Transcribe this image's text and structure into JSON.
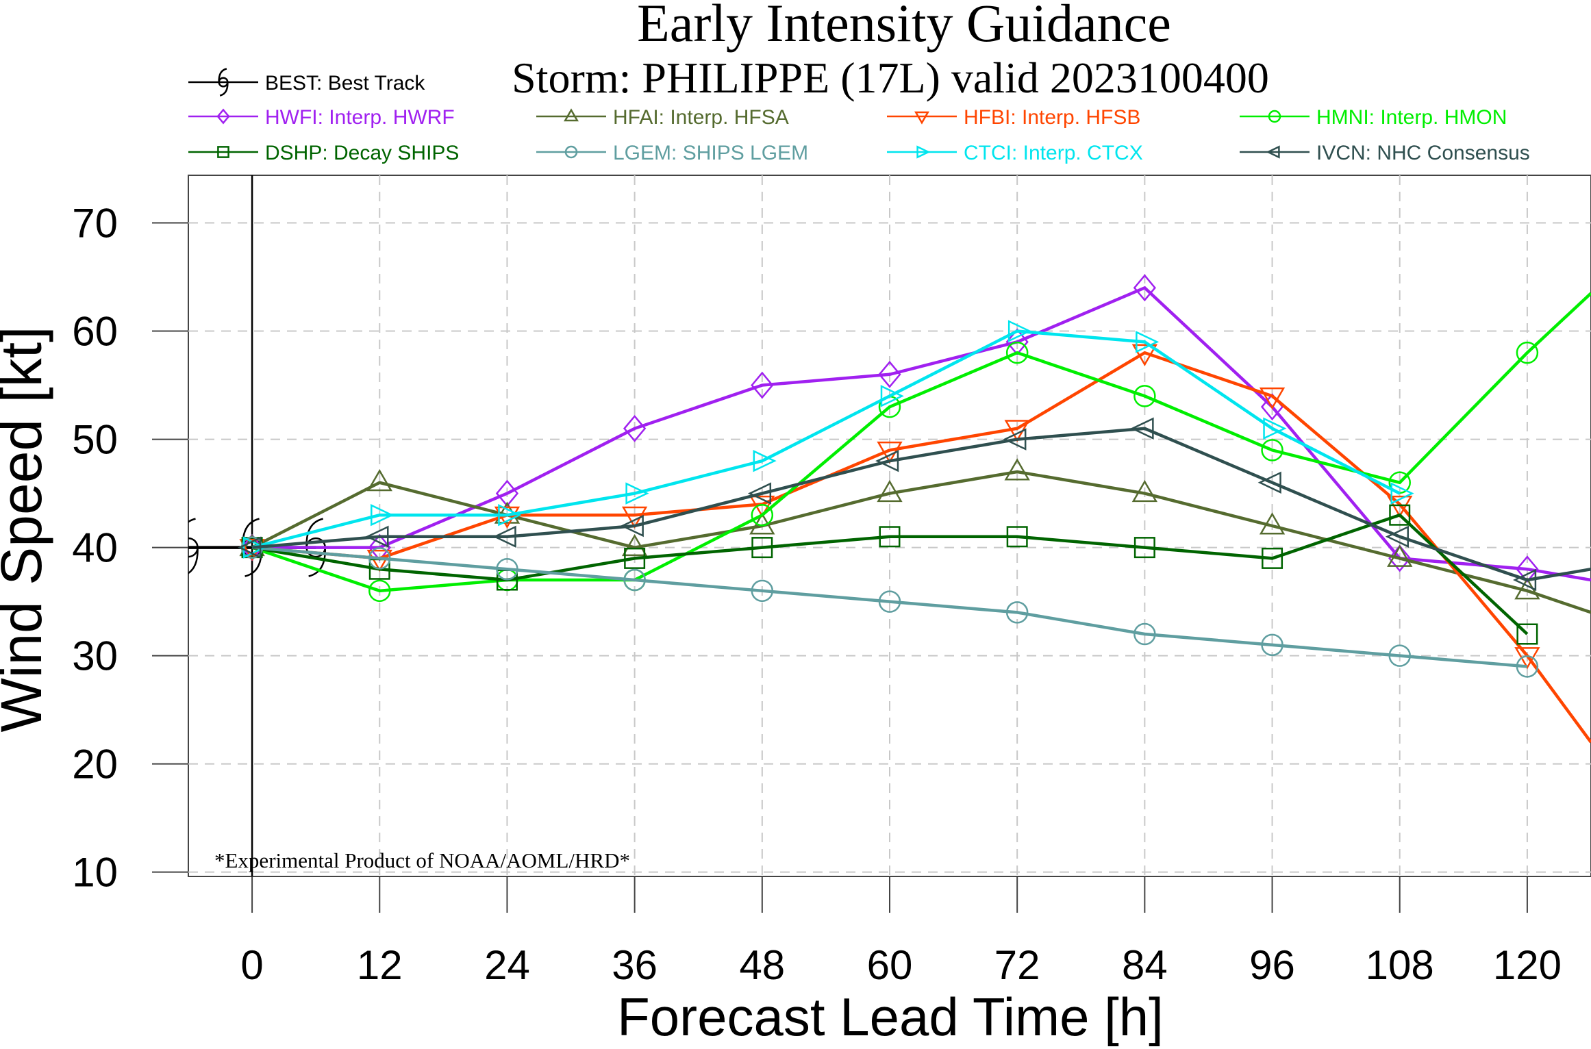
{
  "chart_data": {
    "type": "line",
    "title": "Early Intensity Guidance",
    "subtitle": "Storm: PHILIPPE (17L) valid 2023100400",
    "xlabel": "Forecast Lead Time [h]",
    "ylabel": "Wind Speed [kt]",
    "xlim": [
      -6,
      126
    ],
    "ylim": [
      9.6,
      74.4
    ],
    "x_ticks": [
      0,
      12,
      24,
      36,
      48,
      60,
      72,
      84,
      96,
      108,
      120
    ],
    "y_ticks": [
      10,
      20,
      30,
      40,
      50,
      60,
      70
    ],
    "grid": true,
    "legend_position": "top",
    "annotation": "*Experimental Product of NOAA/AOML/HRD*",
    "series": [
      {
        "name": "BEST: Best Track",
        "color": "#000000",
        "marker": "hurricane",
        "x": [
          -6,
          0,
          6
        ],
        "values": [
          40,
          40,
          40
        ]
      },
      {
        "name": "HWFI: Interp. HWRF",
        "color": "#a020f0",
        "marker": "diamond",
        "x": [
          0,
          12,
          24,
          36,
          48,
          60,
          72,
          84,
          96,
          108,
          120,
          126
        ],
        "values": [
          40,
          40,
          45,
          51,
          55,
          56,
          59,
          64,
          53,
          39,
          38,
          37
        ]
      },
      {
        "name": "HFAI: Interp. HFSA",
        "color": "#556b2f",
        "marker": "triangle-up",
        "x": [
          0,
          12,
          24,
          36,
          48,
          60,
          72,
          84,
          96,
          108,
          120,
          126
        ],
        "values": [
          40,
          46,
          43,
          40,
          42,
          45,
          47,
          45,
          42,
          39,
          36,
          34
        ]
      },
      {
        "name": "HFBI: Interp. HFSB",
        "color": "#ff4500",
        "marker": "triangle-down",
        "x": [
          0,
          12,
          24,
          36,
          48,
          60,
          72,
          84,
          96,
          108,
          120,
          126
        ],
        "values": [
          40,
          39,
          43,
          43,
          44,
          49,
          51,
          58,
          54,
          44,
          30,
          22
        ]
      },
      {
        "name": "HMNI: Interp. HMON",
        "color": "#00ee00",
        "marker": "circle",
        "x": [
          0,
          12,
          24,
          36,
          48,
          60,
          72,
          84,
          96,
          108,
          120,
          126
        ],
        "values": [
          40,
          36,
          37,
          37,
          43,
          53,
          58,
          54,
          49,
          46,
          58,
          63.5
        ]
      },
      {
        "name": "DSHP: Decay SHIPS",
        "color": "#006400",
        "marker": "square",
        "x": [
          0,
          12,
          24,
          36,
          48,
          60,
          72,
          84,
          96,
          108,
          120
        ],
        "values": [
          40,
          38,
          37,
          39,
          40,
          41,
          41,
          40,
          39,
          43,
          32
        ]
      },
      {
        "name": "LGEM: SHIPS LGEM",
        "color": "#5f9ea0",
        "marker": "circle",
        "x": [
          0,
          12,
          24,
          36,
          48,
          60,
          72,
          84,
          96,
          108,
          120
        ],
        "values": [
          40,
          39,
          38,
          37,
          36,
          35,
          34,
          32,
          31,
          30,
          29
        ]
      },
      {
        "name": "CTCI: Interp. CTCX",
        "color": "#00e5ee",
        "marker": "triangle-right",
        "x": [
          0,
          12,
          24,
          36,
          48,
          60,
          72,
          84,
          96,
          108
        ],
        "values": [
          40,
          43,
          43,
          45,
          48,
          54,
          60,
          59,
          51,
          45
        ]
      },
      {
        "name": "IVCN: NHC Consensus",
        "color": "#2f4f4f",
        "marker": "triangle-left",
        "x": [
          0,
          12,
          24,
          36,
          48,
          60,
          72,
          84,
          96,
          108,
          120,
          126
        ],
        "values": [
          40,
          41,
          41,
          42,
          45,
          48,
          50,
          51,
          46,
          41,
          37,
          38
        ]
      }
    ]
  }
}
